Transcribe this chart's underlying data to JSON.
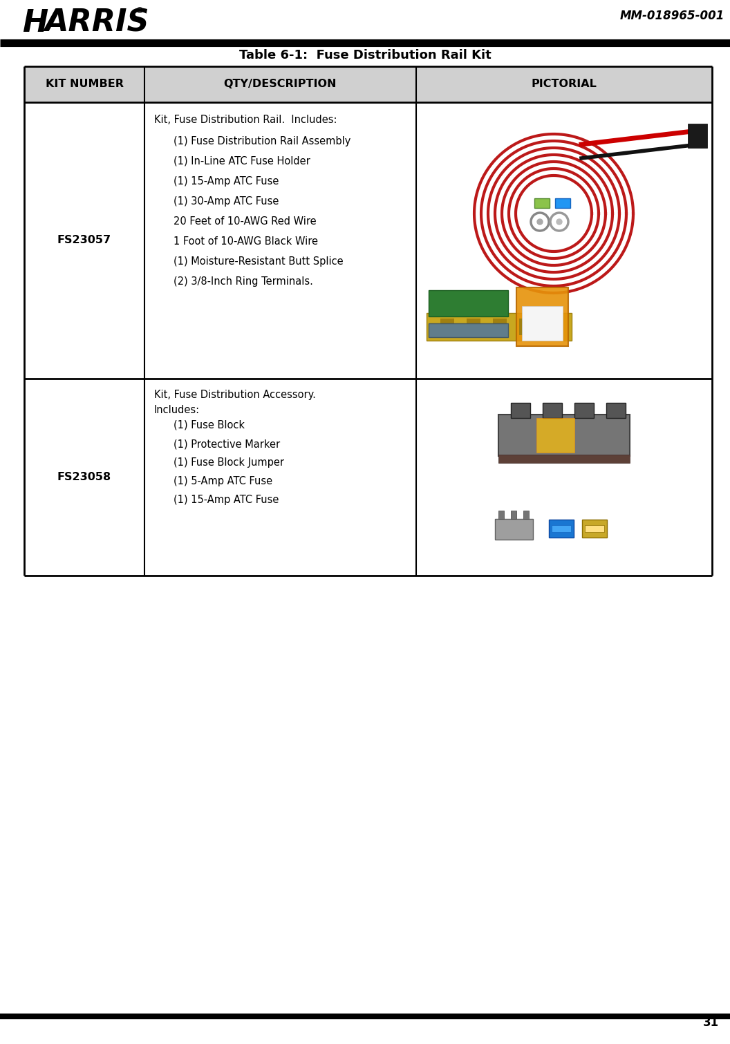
{
  "page_number": "31",
  "doc_number": "MM-018965-001",
  "title": "Table 6-1:  Fuse Distribution Rail Kit",
  "header_bg": "#d0d0d0",
  "col_headers": [
    "KIT NUMBER",
    "QTY/DESCRIPTION",
    "PICTORIAL"
  ],
  "row1_kit": "FS23057",
  "row1_desc_line1": "Kit, Fuse Distribution Rail.  Includes:",
  "row1_desc_items": [
    "(1) Fuse Distribution Rail Assembly",
    "(1) In-Line ATC Fuse Holder",
    "(1) 15-Amp ATC Fuse",
    "(1) 30-Amp ATC Fuse",
    "20 Feet of 10-AWG Red Wire",
    "1 Foot of 10-AWG Black Wire",
    "(1) Moisture-Resistant Butt Splice",
    "(2) 3/8-Inch Ring Terminals."
  ],
  "row2_kit": "FS23058",
  "row2_desc_line1a": "Kit, Fuse Distribution Accessory.",
  "row2_desc_line1b": "Includes:",
  "row2_desc_items": [
    "(1) Fuse Block",
    "(1) Protective Marker",
    "(1) Fuse Block Jumper",
    "(1) 5-Amp ATC Fuse",
    "(1) 15-Amp ATC Fuse"
  ],
  "background_color": "#ffffff",
  "table_lw": 2.0,
  "inner_lw": 1.5
}
